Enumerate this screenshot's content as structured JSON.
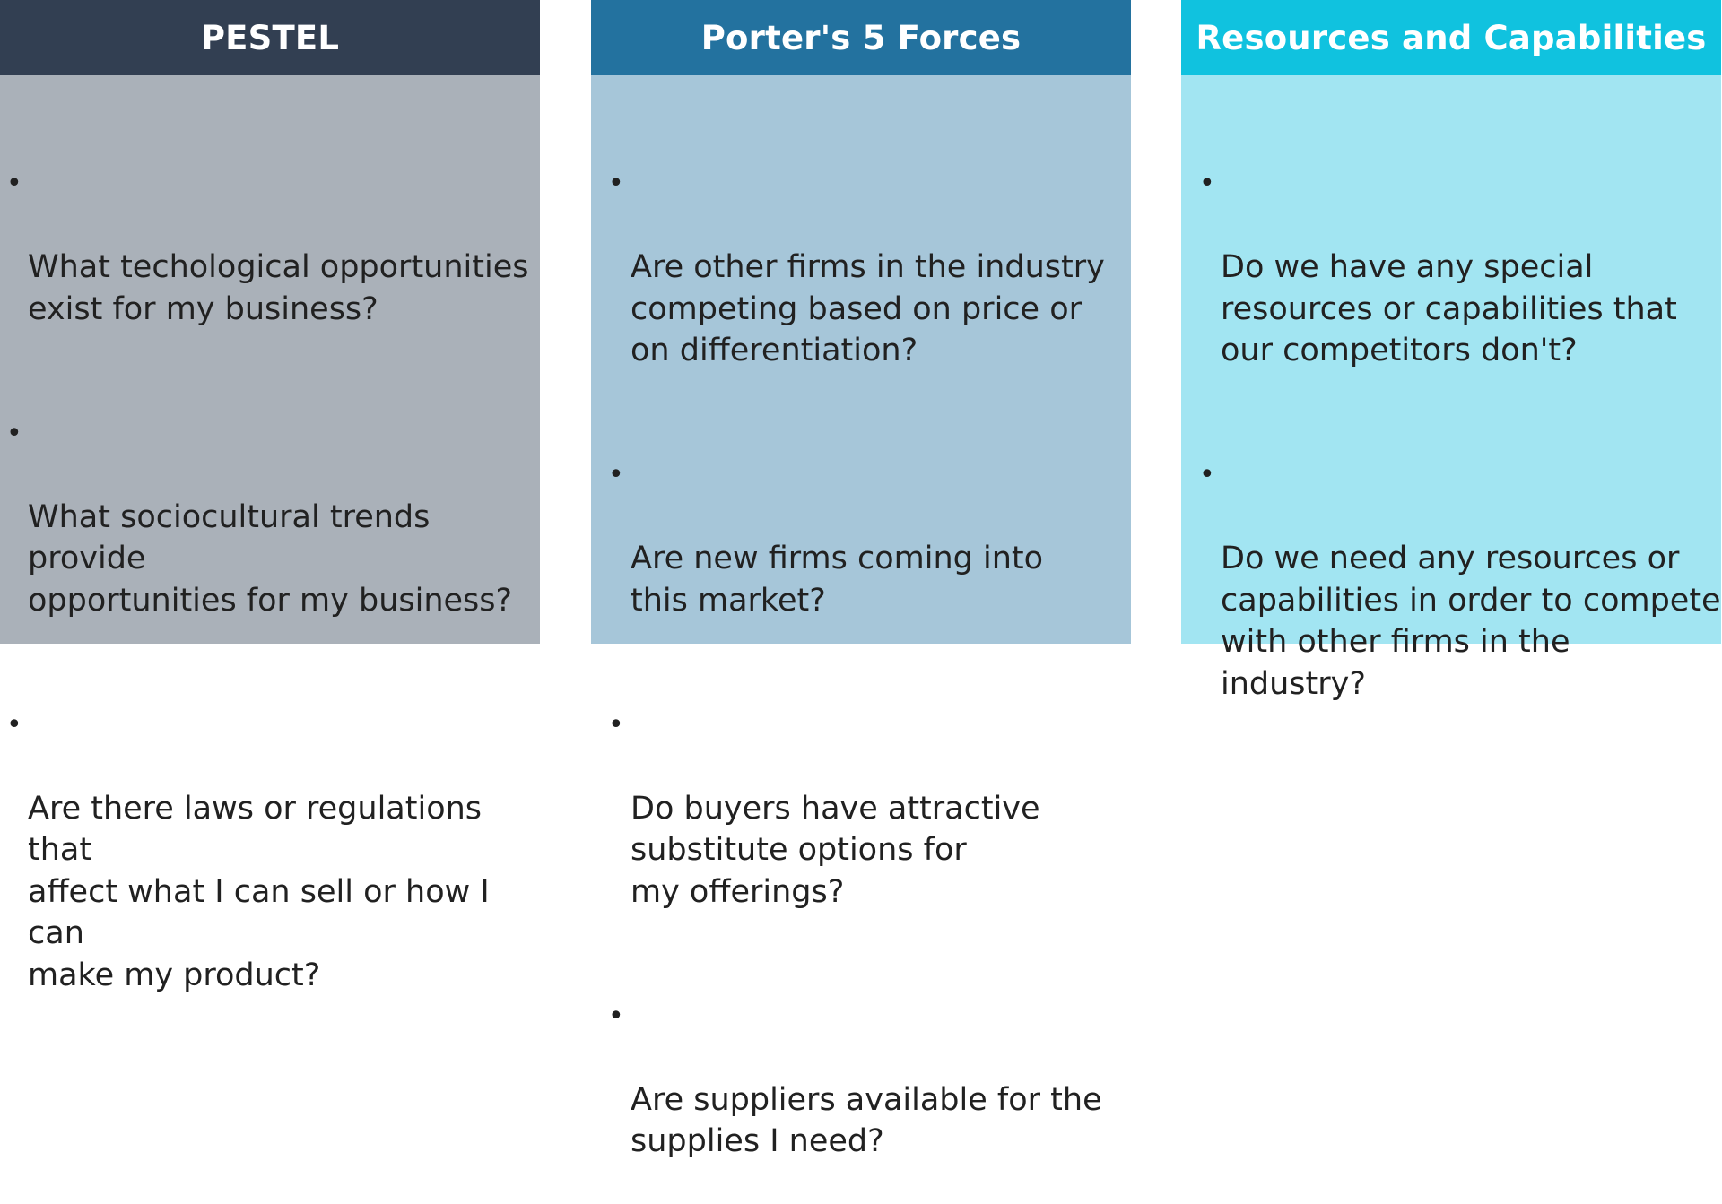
{
  "columns": [
    {
      "title": "PESTEL",
      "header_color": "#323f52",
      "body_color": "#aab1b9",
      "bullets": [
        "What techological opportunities\n exist for my business?",
        "What sociocultural trends provide\nopportunities for my business?",
        "Are there laws or regulations that\naffect what I can sell or how I can\nmake my product?"
      ]
    },
    {
      "title": "Porter's 5 Forces",
      "header_color": "#23729f",
      "body_color": "#a6c6d9",
      "bullets": [
        "Are other firms in the industry\ncompeting based on price or\non differentiation?",
        "Are new firms coming into\nthis market?",
        "Do buyers have attractive\nsubstitute options for\nmy offerings?",
        "Are suppliers available for the\nsupplies I need?"
      ]
    },
    {
      "title": "Resources and Capabilities",
      "header_color": "#10c2df",
      "body_color": "#a2e5f2",
      "bullets": [
        "Do we have any special\nresources or capabilities that\nour competitors don't?",
        "Do we need any resources or\ncapabilities in order to compete\nwith other firms in the industry?"
      ]
    }
  ],
  "bullet_symbol": "•"
}
